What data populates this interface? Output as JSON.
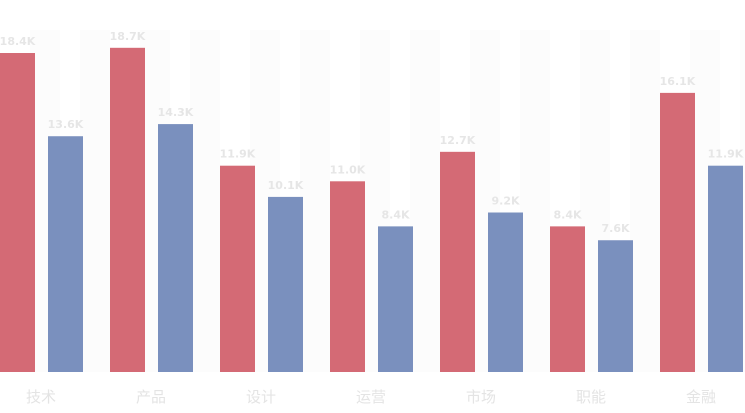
{
  "chart_data": {
    "type": "bar",
    "categories": [
      "技术",
      "产品",
      "设计",
      "运营",
      "市场",
      "职能",
      "金融"
    ],
    "series": [
      {
        "color": "#d46a75",
        "values": [
          18.4,
          18.7,
          11.9,
          11.0,
          12.7,
          8.4,
          16.1
        ],
        "value_labels": [
          "18.4K",
          "18.7K",
          "11.9K",
          "11.0K",
          "12.7K",
          "8.4K",
          "16.1K"
        ]
      },
      {
        "color": "#7a90be",
        "values": [
          13.6,
          14.3,
          10.1,
          8.4,
          9.2,
          7.6,
          11.9
        ],
        "value_labels": [
          "13.6K",
          "14.3K",
          "10.1K",
          "8.4K",
          "9.2K",
          "7.6K",
          "11.9K"
        ]
      }
    ],
    "ylim": [
      0,
      21.4
    ]
  }
}
